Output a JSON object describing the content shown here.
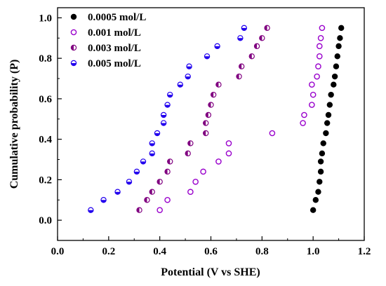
{
  "chart_data": {
    "type": "scatter",
    "title": "",
    "xlabel": "Potential (V vs SHE)",
    "ylabel": "Cumulative probability (P)",
    "xlim": [
      0.0,
      1.2
    ],
    "ylim": [
      -0.1,
      1.05
    ],
    "x_ticks": [
      "0.0",
      "0.2",
      "0.4",
      "0.6",
      "0.8",
      "1.0",
      "1.2"
    ],
    "y_ticks": [
      "0.0",
      "0.2",
      "0.4",
      "0.6",
      "0.8",
      "1.0"
    ],
    "grid": false,
    "legend_position": "top-left",
    "series": [
      {
        "name": "0.0005 mol/L",
        "marker": "filled-circle",
        "color": "#000000",
        "points": [
          [
            1.0,
            0.05
          ],
          [
            1.01,
            0.1
          ],
          [
            1.02,
            0.14
          ],
          [
            1.025,
            0.19
          ],
          [
            1.03,
            0.24
          ],
          [
            1.03,
            0.29
          ],
          [
            1.035,
            0.33
          ],
          [
            1.04,
            0.38
          ],
          [
            1.05,
            0.43
          ],
          [
            1.055,
            0.48
          ],
          [
            1.06,
            0.52
          ],
          [
            1.065,
            0.57
          ],
          [
            1.07,
            0.62
          ],
          [
            1.08,
            0.67
          ],
          [
            1.085,
            0.71
          ],
          [
            1.09,
            0.76
          ],
          [
            1.095,
            0.81
          ],
          [
            1.1,
            0.86
          ],
          [
            1.105,
            0.9
          ],
          [
            1.11,
            0.95
          ]
        ]
      },
      {
        "name": "0.001 mol/L",
        "marker": "open-circle",
        "color": "#9900cc",
        "points": [
          [
            0.4,
            0.05
          ],
          [
            0.43,
            0.1
          ],
          [
            0.52,
            0.14
          ],
          [
            0.54,
            0.19
          ],
          [
            0.57,
            0.24
          ],
          [
            0.63,
            0.29
          ],
          [
            0.67,
            0.33
          ],
          [
            0.67,
            0.38
          ],
          [
            0.84,
            0.43
          ],
          [
            0.96,
            0.48
          ],
          [
            0.965,
            0.52
          ],
          [
            0.995,
            0.57
          ],
          [
            1.0,
            0.62
          ],
          [
            0.995,
            0.67
          ],
          [
            1.015,
            0.71
          ],
          [
            1.02,
            0.76
          ],
          [
            1.025,
            0.81
          ],
          [
            1.025,
            0.86
          ],
          [
            1.03,
            0.9
          ],
          [
            1.035,
            0.95
          ]
        ]
      },
      {
        "name": "0.003 mol/L",
        "marker": "half-filled-left",
        "color": "#800080",
        "points": [
          [
            0.32,
            0.05
          ],
          [
            0.35,
            0.1
          ],
          [
            0.37,
            0.14
          ],
          [
            0.4,
            0.19
          ],
          [
            0.43,
            0.24
          ],
          [
            0.44,
            0.29
          ],
          [
            0.51,
            0.33
          ],
          [
            0.52,
            0.38
          ],
          [
            0.58,
            0.43
          ],
          [
            0.58,
            0.48
          ],
          [
            0.59,
            0.52
          ],
          [
            0.6,
            0.57
          ],
          [
            0.61,
            0.62
          ],
          [
            0.63,
            0.67
          ],
          [
            0.71,
            0.71
          ],
          [
            0.72,
            0.76
          ],
          [
            0.76,
            0.81
          ],
          [
            0.78,
            0.86
          ],
          [
            0.8,
            0.9
          ],
          [
            0.82,
            0.95
          ]
        ]
      },
      {
        "name": "0.005 mol/L",
        "marker": "half-filled-bottom",
        "color": "#2200ee",
        "points": [
          [
            0.13,
            0.05
          ],
          [
            0.18,
            0.1
          ],
          [
            0.235,
            0.14
          ],
          [
            0.28,
            0.19
          ],
          [
            0.31,
            0.24
          ],
          [
            0.335,
            0.29
          ],
          [
            0.37,
            0.33
          ],
          [
            0.37,
            0.38
          ],
          [
            0.39,
            0.43
          ],
          [
            0.415,
            0.48
          ],
          [
            0.415,
            0.52
          ],
          [
            0.43,
            0.57
          ],
          [
            0.44,
            0.62
          ],
          [
            0.48,
            0.67
          ],
          [
            0.51,
            0.71
          ],
          [
            0.515,
            0.76
          ],
          [
            0.585,
            0.81
          ],
          [
            0.625,
            0.86
          ],
          [
            0.715,
            0.9
          ],
          [
            0.73,
            0.95
          ]
        ]
      }
    ]
  }
}
